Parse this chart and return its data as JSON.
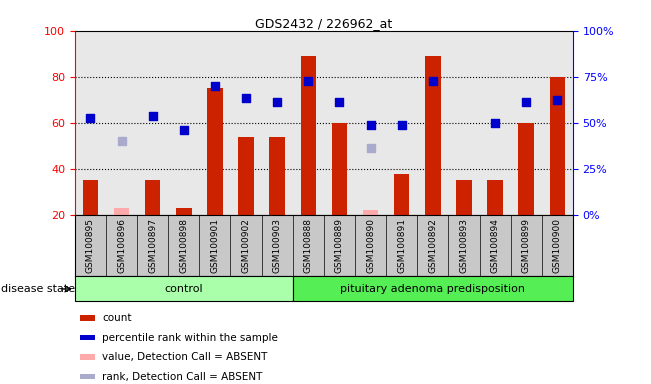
{
  "title": "GDS2432 / 226962_at",
  "samples": [
    "GSM100895",
    "GSM100896",
    "GSM100897",
    "GSM100898",
    "GSM100901",
    "GSM100902",
    "GSM100903",
    "GSM100888",
    "GSM100889",
    "GSM100890",
    "GSM100891",
    "GSM100892",
    "GSM100893",
    "GSM100894",
    "GSM100899",
    "GSM100900"
  ],
  "count_values": [
    35,
    null,
    35,
    23,
    75,
    54,
    54,
    89,
    60,
    null,
    38,
    89,
    35,
    35,
    60,
    80
  ],
  "rank_values": [
    62,
    null,
    63,
    57,
    76,
    71,
    69,
    78,
    69,
    59,
    59,
    78,
    null,
    60,
    69,
    70
  ],
  "count_absent": [
    null,
    23,
    null,
    null,
    null,
    null,
    null,
    null,
    null,
    22,
    null,
    null,
    null,
    null,
    null,
    null
  ],
  "rank_absent": [
    null,
    52,
    null,
    null,
    null,
    null,
    null,
    null,
    null,
    49,
    null,
    null,
    null,
    null,
    null,
    null
  ],
  "n_control": 7,
  "n_pap": 9,
  "left_ylim": [
    20,
    100
  ],
  "right_ylim": [
    0,
    100
  ],
  "right_ticks": [
    0,
    25,
    50,
    75,
    100
  ],
  "right_tick_labels": [
    "0%",
    "25%",
    "50%",
    "75%",
    "100%"
  ],
  "left_ticks": [
    20,
    40,
    60,
    80,
    100
  ],
  "dotted_lines": [
    40,
    60,
    80
  ],
  "bar_color": "#CC2200",
  "rank_color": "#0000CC",
  "absent_bar_color": "#FFAAAA",
  "absent_rank_color": "#AAAACC",
  "control_label": "control",
  "pap_label": "pituitary adenoma predisposition",
  "control_fill": "#AAFFAA",
  "pap_fill": "#55EE55",
  "plot_bg": "#E8E8E8",
  "label_bg": "#C8C8C8",
  "legend_items": [
    [
      "#CC2200",
      "count"
    ],
    [
      "#0000CC",
      "percentile rank within the sample"
    ],
    [
      "#FFAAAA",
      "value, Detection Call = ABSENT"
    ],
    [
      "#AAAACC",
      "rank, Detection Call = ABSENT"
    ]
  ],
  "bar_width": 0.5
}
